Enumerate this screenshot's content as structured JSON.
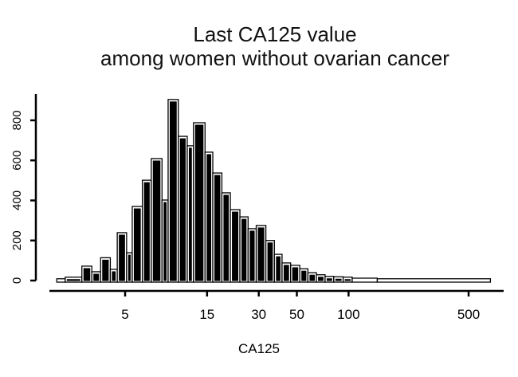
{
  "chart_data": {
    "type": "histogram",
    "title": [
      "Last CA125 value",
      "among women without ovarian cancer"
    ],
    "xlabel": "CA125",
    "ylabel": "",
    "x_scale": "log",
    "xlim": [
      1.7,
      800
    ],
    "ylim": [
      0,
      950
    ],
    "x_ticks": [
      5,
      15,
      30,
      50,
      100,
      500
    ],
    "y_ticks": [
      0,
      200,
      400,
      600,
      800
    ],
    "grid": false,
    "bar_color": "#000000",
    "bins": [
      {
        "from": 2.0,
        "to": 2.24,
        "count": 5
      },
      {
        "from": 2.24,
        "to": 2.8,
        "count": 13
      },
      {
        "from": 2.8,
        "to": 3.2,
        "count": 68
      },
      {
        "from": 3.2,
        "to": 3.6,
        "count": 40
      },
      {
        "from": 3.6,
        "to": 4.1,
        "count": 110
      },
      {
        "from": 4.1,
        "to": 4.5,
        "count": 52
      },
      {
        "from": 4.5,
        "to": 5.1,
        "count": 235
      },
      {
        "from": 5.1,
        "to": 5.5,
        "count": 135
      },
      {
        "from": 5.5,
        "to": 6.3,
        "count": 366
      },
      {
        "from": 6.3,
        "to": 7.1,
        "count": 497
      },
      {
        "from": 7.1,
        "to": 8.2,
        "count": 605
      },
      {
        "from": 8.2,
        "to": 8.9,
        "count": 398
      },
      {
        "from": 8.9,
        "to": 10.2,
        "count": 900
      },
      {
        "from": 10.2,
        "to": 11.5,
        "count": 716
      },
      {
        "from": 11.5,
        "to": 12.5,
        "count": 669
      },
      {
        "from": 12.5,
        "to": 14.6,
        "count": 784
      },
      {
        "from": 14.6,
        "to": 16.2,
        "count": 637
      },
      {
        "from": 16.2,
        "to": 18.3,
        "count": 533
      },
      {
        "from": 18.3,
        "to": 20.5,
        "count": 434
      },
      {
        "from": 20.5,
        "to": 23.3,
        "count": 350
      },
      {
        "from": 23.3,
        "to": 26,
        "count": 314
      },
      {
        "from": 26,
        "to": 29,
        "count": 255
      },
      {
        "from": 29,
        "to": 33,
        "count": 271
      },
      {
        "from": 33,
        "to": 37,
        "count": 196
      },
      {
        "from": 37,
        "to": 41,
        "count": 127
      },
      {
        "from": 41,
        "to": 46,
        "count": 84
      },
      {
        "from": 46,
        "to": 52,
        "count": 72
      },
      {
        "from": 52,
        "to": 58,
        "count": 55
      },
      {
        "from": 58,
        "to": 65,
        "count": 35
      },
      {
        "from": 65,
        "to": 73,
        "count": 25
      },
      {
        "from": 73,
        "to": 82,
        "count": 17
      },
      {
        "from": 82,
        "to": 93,
        "count": 15
      },
      {
        "from": 93,
        "to": 105,
        "count": 13
      },
      {
        "from": 105,
        "to": 147,
        "count": 8
      },
      {
        "from": 147,
        "to": 670,
        "count": 5
      }
    ]
  }
}
